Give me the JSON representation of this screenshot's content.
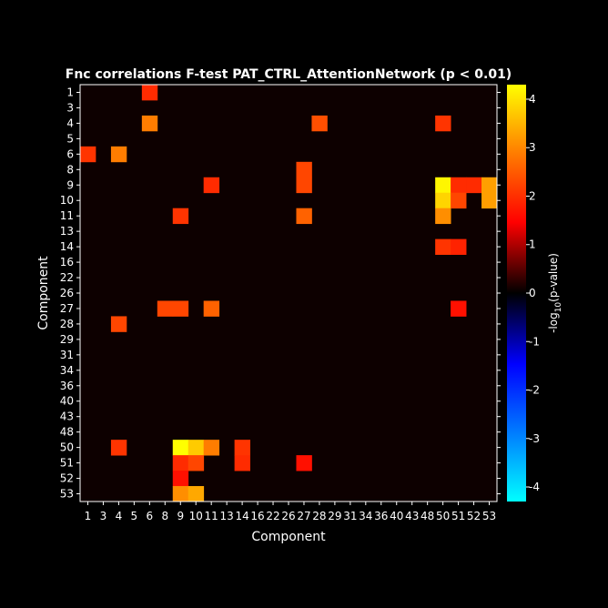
{
  "chart_data": {
    "type": "heatmap",
    "title": "Fnc correlations F-test PAT_CTRL_AttentionNetwork (p < 0.01)",
    "xlabel": "Component",
    "ylabel": "Component",
    "components": [
      1,
      3,
      4,
      5,
      6,
      8,
      9,
      10,
      11,
      13,
      14,
      16,
      22,
      26,
      27,
      28,
      29,
      31,
      34,
      36,
      40,
      43,
      48,
      50,
      51,
      52,
      53
    ],
    "background_value": 0,
    "cells": [
      {
        "row": 1,
        "col": 6,
        "value": 1.9
      },
      {
        "row": 4,
        "col": 6,
        "value": 2.8
      },
      {
        "row": 4,
        "col": 28,
        "value": 2.3
      },
      {
        "row": 4,
        "col": 50,
        "value": 2.0
      },
      {
        "row": 6,
        "col": 1,
        "value": 2.0
      },
      {
        "row": 6,
        "col": 4,
        "value": 2.8
      },
      {
        "row": 8,
        "col": 27,
        "value": 2.2
      },
      {
        "row": 9,
        "col": 11,
        "value": 1.9
      },
      {
        "row": 9,
        "col": 27,
        "value": 2.2
      },
      {
        "row": 9,
        "col": 50,
        "value": 4.2
      },
      {
        "row": 9,
        "col": 51,
        "value": 1.9
      },
      {
        "row": 9,
        "col": 52,
        "value": 1.9
      },
      {
        "row": 9,
        "col": 53,
        "value": 3.2
      },
      {
        "row": 10,
        "col": 50,
        "value": 3.8
      },
      {
        "row": 10,
        "col": 51,
        "value": 2.2
      },
      {
        "row": 10,
        "col": 53,
        "value": 3.2
      },
      {
        "row": 11,
        "col": 9,
        "value": 2.0
      },
      {
        "row": 11,
        "col": 27,
        "value": 2.5
      },
      {
        "row": 11,
        "col": 50,
        "value": 3.0
      },
      {
        "row": 14,
        "col": 50,
        "value": 2.0
      },
      {
        "row": 14,
        "col": 51,
        "value": 1.8
      },
      {
        "row": 27,
        "col": 8,
        "value": 2.2
      },
      {
        "row": 27,
        "col": 9,
        "value": 2.2
      },
      {
        "row": 27,
        "col": 11,
        "value": 2.5
      },
      {
        "row": 27,
        "col": 51,
        "value": 1.6
      },
      {
        "row": 28,
        "col": 4,
        "value": 2.2
      },
      {
        "row": 50,
        "col": 4,
        "value": 2.0
      },
      {
        "row": 50,
        "col": 9,
        "value": 4.3
      },
      {
        "row": 50,
        "col": 10,
        "value": 3.7
      },
      {
        "row": 50,
        "col": 11,
        "value": 2.8
      },
      {
        "row": 50,
        "col": 14,
        "value": 2.0
      },
      {
        "row": 51,
        "col": 9,
        "value": 1.9
      },
      {
        "row": 51,
        "col": 10,
        "value": 2.2
      },
      {
        "row": 51,
        "col": 14,
        "value": 1.9
      },
      {
        "row": 51,
        "col": 27,
        "value": 1.6
      },
      {
        "row": 52,
        "col": 9,
        "value": 1.6
      },
      {
        "row": 53,
        "col": 9,
        "value": 3.0
      },
      {
        "row": 53,
        "col": 10,
        "value": 3.3
      }
    ],
    "colorbar": {
      "label": "-log10(p-value)",
      "label_main": "-log",
      "label_sub": "10",
      "label_rest": "(p-value)",
      "range": [
        -4.3,
        4.3
      ],
      "ticks": [
        "4",
        "3",
        "2",
        "1",
        "0",
        "-1",
        "-2",
        "-3",
        "-4"
      ],
      "tick_values": [
        4,
        3,
        2,
        1,
        0,
        -1,
        -2,
        -3,
        -4
      ]
    },
    "grid": false
  }
}
